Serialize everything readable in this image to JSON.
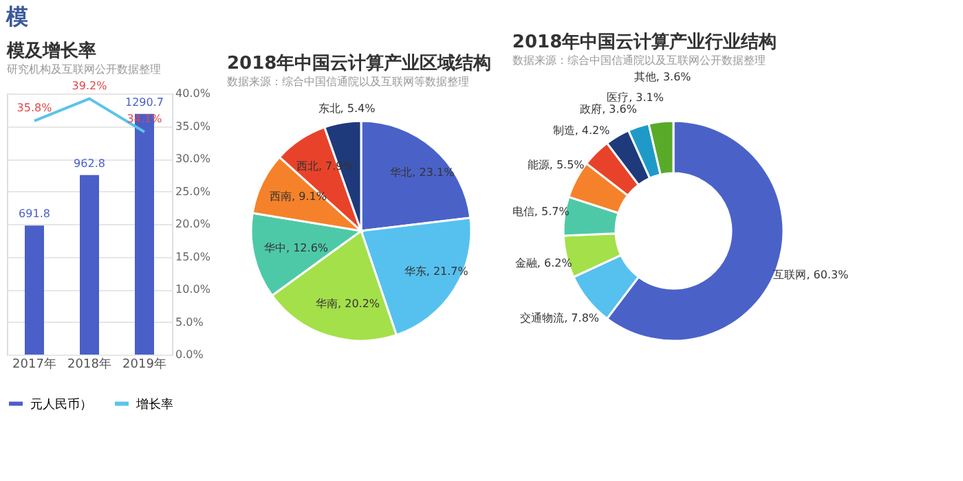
{
  "chart_data": [
    {
      "type": "bar",
      "title": "模及增长率",
      "subtitle": "研究机构及互联网公开数据整理",
      "annotations": [
        "模"
      ],
      "categories": [
        "2017年",
        "2018年",
        "2019年"
      ],
      "series": [
        {
          "name": "元人民币）",
          "type": "bar",
          "color": "#4a5fc8",
          "values": [
            691.8,
            962.8,
            1290.7
          ],
          "value_labels": [
            "691.8",
            "962.8",
            "1290.7"
          ]
        },
        {
          "name": "增长率",
          "type": "line",
          "axis": "y2",
          "color": "#5bc4e8",
          "values": [
            35.8,
            39.2,
            34.1
          ],
          "value_labels": [
            "35.8%",
            "39.2%",
            "34.1%"
          ]
        }
      ],
      "ylim": [
        0,
        1400
      ],
      "tick_labels": "xy2",
      "y2lim": [
        0,
        40
      ],
      "y2ticks": [
        {
          "value": 0,
          "label": "0.0%"
        },
        {
          "value": 5,
          "label": "5.0%"
        },
        {
          "value": 10,
          "label": "10.0%"
        },
        {
          "value": 15,
          "label": "15.0%"
        },
        {
          "value": 20,
          "label": "20.0%"
        },
        {
          "value": 25,
          "label": "25.0%"
        },
        {
          "value": 30,
          "label": "30.0%"
        },
        {
          "value": 35,
          "label": "35.0%"
        },
        {
          "value": 40,
          "label": "40.0%"
        }
      ],
      "grid": "y",
      "legend": "bottom"
    },
    {
      "type": "pie",
      "title": "2018年中国云计算产业区域结构",
      "subtitle": "数据来源：综合中国信通院以及互联网等数据整理",
      "categories": [
        "华北",
        "华东",
        "华南",
        "华中",
        "西南",
        "西北",
        "东北"
      ],
      "values": [
        23.1,
        21.7,
        20.2,
        12.6,
        9.1,
        7.9,
        5.4
      ],
      "colors": [
        "#4a62c8",
        "#56c1ef",
        "#a4e04a",
        "#4ec9a8",
        "#f5822a",
        "#e8432a",
        "#1f3a7a"
      ],
      "value_labels": [
        ", 23.1%",
        ", 21.7%",
        ", 20.2%",
        ", 12.6%",
        ", 9.1%",
        ", 7.9%",
        ", 5.4%"
      ]
    },
    {
      "type": "donut",
      "title": "2018年中国云计算产业行业结构",
      "subtitle": "数据来源：综合中国信通院以及互联网公开数据整理",
      "categories": [
        "互联网",
        "交通物流",
        "金融",
        "电信",
        "能源",
        "制造",
        "政府",
        "医疗",
        "其他"
      ],
      "values": [
        60.3,
        7.8,
        6.2,
        5.7,
        5.5,
        4.2,
        3.6,
        3.1,
        3.6
      ],
      "colors": [
        "#4a62c8",
        "#56c1ef",
        "#a4e04a",
        "#4ec9a8",
        "#f5822a",
        "#e8432a",
        "#1f3a7a",
        "#1f9ac8",
        "#5aaa2a"
      ],
      "value_labels": [
        ", 60.3%",
        ", 7.8%",
        ", 6.2%",
        ", 5.7%",
        ", 5.5%",
        ", 4.2%",
        ", 3.6%",
        ", 3.1%",
        ", 3.6%"
      ]
    }
  ]
}
